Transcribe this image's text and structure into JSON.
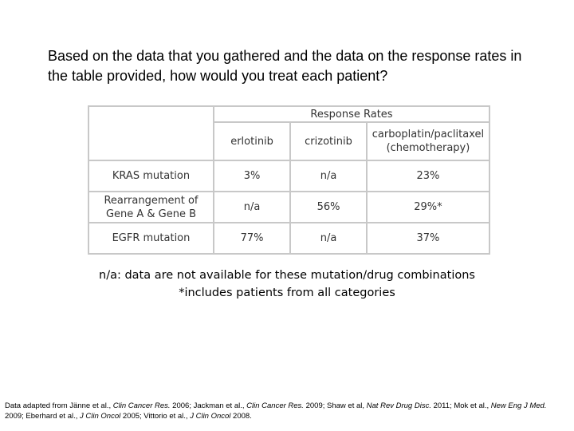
{
  "question": "Based on the data that you gathered and the data on the response rates in the table provided, how would you treat each patient?",
  "table": {
    "group_header": "Response Rates",
    "columns": [
      "erlotinib",
      "crizotinib",
      "carboplatin/paclitaxel (chemotherapy)"
    ],
    "rows": [
      [
        "KRAS mutation",
        "3%",
        "n/a",
        "23%"
      ],
      [
        "Rearrangement of Gene A & Gene B",
        "n/a",
        "56%",
        "29%*"
      ],
      [
        "EGFR mutation",
        "77%",
        "n/a",
        "37%"
      ]
    ]
  },
  "notes": [
    "n/a: data are not available for these mutation/drug combinations",
    "*includes patients from all categories"
  ],
  "citation": [
    "Data adapted from Jänne et al., ",
    "Clin Cancer Res.",
    " 2006; Jackman et al., ",
    "Clin Cancer Res.",
    " 2009; Shaw et al, ",
    "Nat Rev Drug Disc.",
    " 2011; Mok et al., ",
    "New Eng J Med.",
    " 2009; Eberhard et al., ",
    "J Clin Oncol",
    " 2005; Vittorio et al., ",
    "J Clin Oncol",
    " 2008."
  ]
}
